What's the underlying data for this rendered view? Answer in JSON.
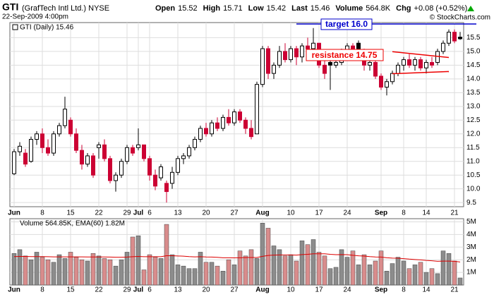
{
  "header": {
    "symbol": "GTI",
    "name": "(GrafTech Intl Ltd.) NYSE",
    "datetime": "22-Sep-2009 4:00pm",
    "quote": [
      [
        "Open",
        "15.52"
      ],
      [
        "High",
        "15.71"
      ],
      [
        "Low",
        "15.42"
      ],
      [
        "Last",
        "15.46"
      ],
      [
        "Volume",
        "564.8K"
      ],
      [
        "Chg",
        "+0.08 (+0.52%)"
      ]
    ],
    "copyright": "© StockCharts.com"
  },
  "chart_data": [
    {
      "type": "candlestick",
      "legend": "GTI (Daily) 15.46",
      "categories": [
        "Jun",
        null,
        null,
        null,
        null,
        "8",
        null,
        null,
        null,
        null,
        "15",
        null,
        null,
        null,
        null,
        "22",
        null,
        null,
        null,
        null,
        "29",
        null,
        "Jul",
        null,
        "6",
        null,
        null,
        null,
        null,
        "13",
        null,
        null,
        null,
        null,
        "20",
        null,
        null,
        null,
        null,
        "27",
        null,
        null,
        null,
        null,
        "Aug",
        null,
        null,
        null,
        null,
        "10",
        null,
        null,
        null,
        null,
        "17",
        null,
        null,
        null,
        null,
        "24",
        null,
        null,
        null,
        null,
        null,
        "Sep",
        null,
        null,
        null,
        "8",
        null,
        null,
        null,
        "14",
        null,
        null,
        null,
        null,
        "21",
        null
      ],
      "open": [
        10.55,
        11.35,
        11.3,
        11.0,
        11.8,
        12.0,
        11.5,
        11.3,
        12.0,
        12.3,
        12.5,
        12.0,
        11.4,
        10.9,
        11.2,
        11.5,
        11.6,
        11.1,
        10.3,
        10.5,
        11.0,
        11.5,
        11.5,
        11.6,
        11.1,
        10.5,
        10.4,
        10.2,
        10.2,
        10.6,
        11.1,
        11.2,
        11.5,
        11.8,
        12.2,
        12.0,
        12.4,
        12.2,
        12.6,
        12.4,
        12.8,
        12.5,
        12.2,
        12.0,
        13.8,
        15.1,
        14.2,
        14.5,
        15.0,
        14.7,
        15.1,
        14.8,
        15.2,
        15.1,
        15.3,
        14.5,
        14.6,
        14.5,
        14.6,
        15.0,
        15.2,
        15.3,
        15.0,
        14.5,
        14.6,
        14.1,
        13.7,
        13.9,
        14.2,
        14.5,
        14.7,
        14.5,
        14.7,
        14.4,
        14.6,
        14.6,
        15.0,
        15.3,
        15.7,
        15.52
      ],
      "high": [
        11.45,
        11.7,
        11.45,
        11.9,
        12.1,
        12.2,
        11.8,
        12.1,
        12.4,
        13.35,
        12.6,
        12.2,
        11.6,
        11.3,
        11.3,
        11.7,
        11.8,
        11.2,
        10.6,
        11.1,
        11.6,
        11.6,
        12.2,
        11.6,
        11.2,
        10.7,
        10.9,
        10.3,
        10.8,
        11.2,
        11.3,
        11.6,
        11.9,
        12.3,
        12.4,
        12.5,
        12.6,
        12.7,
        12.9,
        12.9,
        12.9,
        12.6,
        12.5,
        13.9,
        15.2,
        15.2,
        14.6,
        15.2,
        15.3,
        15.2,
        15.2,
        15.3,
        15.5,
        15.85,
        15.3,
        14.9,
        15.0,
        14.9,
        15.1,
        15.3,
        15.3,
        15.4,
        15.1,
        14.8,
        14.7,
        14.2,
        14.0,
        14.3,
        14.6,
        14.8,
        14.9,
        14.8,
        14.8,
        14.7,
        14.8,
        15.1,
        15.4,
        15.8,
        15.8,
        15.71
      ],
      "low": [
        10.5,
        11.2,
        10.8,
        10.95,
        11.6,
        11.3,
        11.2,
        11.2,
        11.9,
        12.2,
        11.9,
        11.3,
        10.7,
        10.8,
        10.4,
        11.1,
        11.0,
        10.2,
        9.9,
        10.4,
        10.9,
        11.2,
        11.4,
        11.0,
        10.3,
        9.95,
        10.3,
        9.5,
        10.0,
        10.5,
        10.9,
        11.1,
        11.4,
        11.7,
        11.9,
        11.9,
        12.1,
        12.1,
        12.3,
        12.3,
        12.4,
        12.0,
        11.8,
        12.0,
        13.7,
        14.0,
        14.0,
        14.4,
        14.6,
        14.6,
        14.5,
        14.6,
        14.9,
        15.0,
        14.4,
        14.0,
        13.6,
        14.4,
        14.5,
        14.9,
        15.0,
        15.0,
        14.3,
        14.3,
        14.0,
        13.6,
        13.4,
        13.8,
        14.1,
        14.3,
        14.4,
        14.3,
        14.3,
        14.2,
        14.4,
        14.5,
        14.9,
        15.2,
        15.3,
        15.42
      ],
      "close": [
        11.35,
        11.55,
        10.9,
        11.8,
        12.0,
        11.5,
        11.3,
        12.0,
        12.3,
        12.9,
        12.0,
        11.4,
        10.9,
        11.2,
        10.5,
        11.6,
        11.1,
        10.3,
        10.5,
        11.0,
        11.5,
        11.3,
        11.6,
        11.1,
        10.5,
        10.1,
        10.8,
        9.9,
        10.6,
        11.1,
        11.2,
        11.5,
        11.8,
        12.2,
        12.0,
        12.4,
        12.2,
        12.6,
        12.4,
        12.8,
        12.5,
        12.2,
        11.9,
        13.8,
        15.1,
        14.2,
        14.5,
        15.0,
        14.7,
        15.1,
        14.8,
        15.2,
        15.1,
        15.3,
        14.5,
        14.2,
        14.5,
        14.6,
        15.0,
        15.2,
        15.1,
        15.1,
        14.5,
        14.6,
        14.1,
        13.7,
        13.9,
        14.2,
        14.5,
        14.7,
        14.5,
        14.7,
        14.4,
        14.6,
        14.5,
        15.0,
        15.3,
        15.7,
        15.38,
        15.46
      ],
      "ylim": [
        9.35,
        16.05
      ],
      "yticks": [
        9.5,
        {
          "value": 10,
          "label": "10.0"
        },
        10.5,
        {
          "value": 11,
          "label": "11.0"
        },
        11.5,
        {
          "value": 12,
          "label": "12.0"
        },
        12.5,
        {
          "value": 13,
          "label": "13.0"
        },
        13.5,
        {
          "value": 14,
          "label": "14.0"
        },
        14.5,
        {
          "value": 15,
          "label": "15.0"
        },
        15.5
      ],
      "grid": true,
      "up_color": "#000000",
      "down_color": "#cc0033",
      "annotations": {
        "target": {
          "text": "target 16.0",
          "value": 16.0,
          "color": "#0000cc"
        },
        "resistance": {
          "text": "resistance 14.75",
          "color": "#ee0000"
        },
        "trendlines": [
          {
            "values": [
              14.99,
              14.78
            ],
            "color": "#ee0000"
          },
          {
            "values": [
              14.19,
              14.27
            ],
            "color": "#ee0000"
          }
        ]
      }
    },
    {
      "type": "volume",
      "legend": "Volume 564.85K, EMA(60) 1.82M",
      "categories": [
        "Jun",
        null,
        null,
        null,
        null,
        "8",
        null,
        null,
        null,
        null,
        "15",
        null,
        null,
        null,
        null,
        "22",
        null,
        null,
        null,
        null,
        "29",
        null,
        "Jul",
        null,
        "6",
        null,
        null,
        null,
        null,
        "13",
        null,
        null,
        null,
        null,
        "20",
        null,
        null,
        null,
        null,
        "27",
        null,
        null,
        null,
        null,
        "Aug",
        null,
        null,
        null,
        null,
        "10",
        null,
        null,
        null,
        null,
        "17",
        null,
        null,
        null,
        null,
        "24",
        null,
        null,
        null,
        null,
        null,
        "Sep",
        null,
        null,
        null,
        "8",
        null,
        null,
        null,
        "14",
        null,
        null,
        null,
        null,
        "21",
        null
      ],
      "values": [
        2.5,
        2.8,
        2.3,
        2.0,
        2.6,
        2.2,
        2.0,
        1.8,
        2.4,
        2.1,
        2.6,
        2.2,
        2.0,
        1.9,
        2.5,
        2.3,
        2.1,
        2.0,
        1.5,
        2.0,
        2.6,
        3.8,
        3.9,
        1.2,
        2.4,
        2.2,
        2.1,
        4.8,
        2.4,
        1.6,
        1.5,
        1.3,
        1.3,
        2.6,
        1.8,
        1.8,
        1.5,
        1.1,
        2.0,
        1.6,
        2.7,
        2.3,
        2.8,
        2.1,
        4.9,
        4.5,
        3.1,
        2.8,
        2.3,
        2.4,
        1.9,
        3.5,
        3.2,
        3.6,
        2.6,
        2.3,
        1.3,
        1.4,
        2.8,
        2.2,
        2.7,
        1.6,
        2.4,
        1.6,
        1.9,
        2.7,
        1.1,
        1.7,
        2.2,
        1.9,
        1.3,
        1.6,
        1.8,
        1.0,
        1.3,
        0.9,
        2.7,
        2.5,
        1.9,
        0.56
      ],
      "ema": [
        2.25,
        2.26,
        2.26,
        2.25,
        2.25,
        2.25,
        2.24,
        2.23,
        2.23,
        2.23,
        2.23,
        2.23,
        2.23,
        2.22,
        2.22,
        2.22,
        2.22,
        2.21,
        2.2,
        2.2,
        2.21,
        2.24,
        2.26,
        2.24,
        2.24,
        2.24,
        2.24,
        2.32,
        2.32,
        2.3,
        2.28,
        2.25,
        2.23,
        2.24,
        2.22,
        2.21,
        2.19,
        2.16,
        2.16,
        2.15,
        2.16,
        2.17,
        2.18,
        2.18,
        2.27,
        2.34,
        2.37,
        2.38,
        2.38,
        2.38,
        2.37,
        2.41,
        2.43,
        2.47,
        2.47,
        2.47,
        2.43,
        2.4,
        2.41,
        2.4,
        2.35,
        2.31,
        2.29,
        2.25,
        2.22,
        2.21,
        2.16,
        2.13,
        2.12,
        2.09,
        2.05,
        2.02,
        1.99,
        1.95,
        1.92,
        1.88,
        1.89,
        1.89,
        1.88,
        1.82
      ],
      "ema_color": "#dd0000",
      "up_color": "#8c8c8c",
      "down_color": "#d98c8c",
      "ylim": [
        0,
        5.25
      ],
      "yticks": [
        {
          "value": 1,
          "label": "1M"
        },
        {
          "value": 2,
          "label": "2M"
        },
        {
          "value": 3,
          "label": "3M"
        },
        {
          "value": 4,
          "label": "4M"
        },
        {
          "value": 5,
          "label": "5M"
        }
      ],
      "grid": true
    }
  ]
}
